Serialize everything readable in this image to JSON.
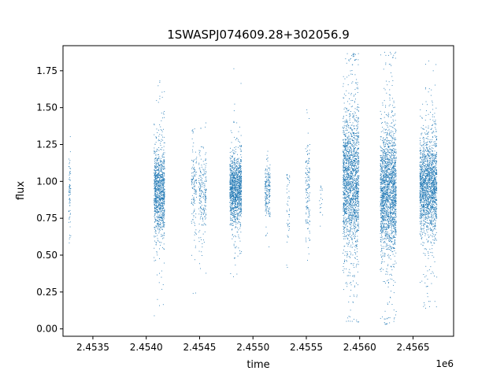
{
  "chart_data": {
    "type": "scatter",
    "title": "1SWASPJ074609.28+302056.9",
    "xlabel": "time",
    "ylabel": "flux",
    "x_offset_label": "1e6",
    "xlim": [
      2453220,
      2456880
    ],
    "ylim": [
      -0.05,
      1.92
    ],
    "x_ticks": [
      2453500,
      2454000,
      2454500,
      2455000,
      2455500,
      2456000,
      2456500
    ],
    "x_tick_labels": [
      "2.4535",
      "2.4540",
      "2.4545",
      "2.4550",
      "2.4555",
      "2.4560",
      "2.4565"
    ],
    "y_ticks": [
      0.0,
      0.25,
      0.5,
      0.75,
      1.0,
      1.25,
      1.5,
      1.75
    ],
    "y_tick_labels": [
      "0.00",
      "0.25",
      "0.50",
      "0.75",
      "1.00",
      "1.25",
      "1.50",
      "1.75"
    ],
    "grid": false,
    "marker_color": "#1f77b4",
    "series_clusters": [
      {
        "x_start": 2453270,
        "x_end": 2453290,
        "median": 0.95,
        "spread": 0.14,
        "min": 0.42,
        "max": 1.56,
        "count": 70
      },
      {
        "x_start": 2454070,
        "x_end": 2454170,
        "median": 0.93,
        "spread": 0.14,
        "min": 0.09,
        "max": 1.86,
        "count": 1100
      },
      {
        "x_start": 2454420,
        "x_end": 2454470,
        "median": 0.98,
        "spread": 0.16,
        "min": 0.22,
        "max": 1.36,
        "count": 140
      },
      {
        "x_start": 2454490,
        "x_end": 2454560,
        "median": 0.92,
        "spread": 0.14,
        "min": 0.08,
        "max": 1.41,
        "count": 220
      },
      {
        "x_start": 2454780,
        "x_end": 2454890,
        "median": 0.95,
        "spread": 0.11,
        "min": 0.11,
        "max": 1.79,
        "count": 1200
      },
      {
        "x_start": 2455110,
        "x_end": 2455160,
        "median": 0.95,
        "spread": 0.09,
        "min": 0.13,
        "max": 1.24,
        "count": 200
      },
      {
        "x_start": 2455310,
        "x_end": 2455340,
        "median": 0.85,
        "spread": 0.15,
        "min": 0.2,
        "max": 1.05,
        "count": 45
      },
      {
        "x_start": 2455490,
        "x_end": 2455530,
        "median": 0.94,
        "spread": 0.16,
        "min": 0.13,
        "max": 1.5,
        "count": 140
      },
      {
        "x_start": 2455620,
        "x_end": 2455650,
        "median": 0.85,
        "spread": 0.12,
        "min": 0.6,
        "max": 1.0,
        "count": 18
      },
      {
        "x_start": 2455840,
        "x_end": 2455990,
        "median": 1.0,
        "spread": 0.24,
        "min": 0.04,
        "max": 1.87,
        "count": 1900
      },
      {
        "x_start": 2456190,
        "x_end": 2456340,
        "median": 0.93,
        "spread": 0.21,
        "min": 0.03,
        "max": 1.88,
        "count": 2000
      },
      {
        "x_start": 2456560,
        "x_end": 2456720,
        "median": 0.97,
        "spread": 0.16,
        "min": 0.14,
        "max": 1.82,
        "count": 1800
      }
    ]
  }
}
